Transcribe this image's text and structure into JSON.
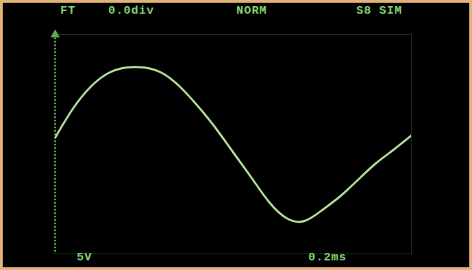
{
  "chart_data": {
    "type": "line",
    "annotations": [
      "FT",
      "0.0div",
      "NORM",
      "S8 SIM",
      "5V",
      "0.2ms"
    ],
    "x": [
      0,
      0.1,
      0.2,
      0.3,
      0.4,
      0.5,
      0.6,
      0.7,
      0.8,
      0.9,
      1.0,
      1.1,
      1.2,
      1.3,
      1.4,
      1.5,
      1.6,
      1.7,
      1.8,
      1.9,
      2.0
    ],
    "values": [
      1.2,
      6.5,
      10.5,
      13,
      14,
      14,
      13,
      10.5,
      7,
      3,
      -1.5,
      -6,
      -10.5,
      -13.5,
      -14,
      -12,
      -9.5,
      -6.5,
      -3.5,
      -1,
      1.6
    ],
    "color": "#b8e6a0",
    "xlim": [
      0,
      2.0
    ],
    "ylim": [
      -20,
      20
    ],
    "grid": false,
    "tick_labels": false
  }
}
